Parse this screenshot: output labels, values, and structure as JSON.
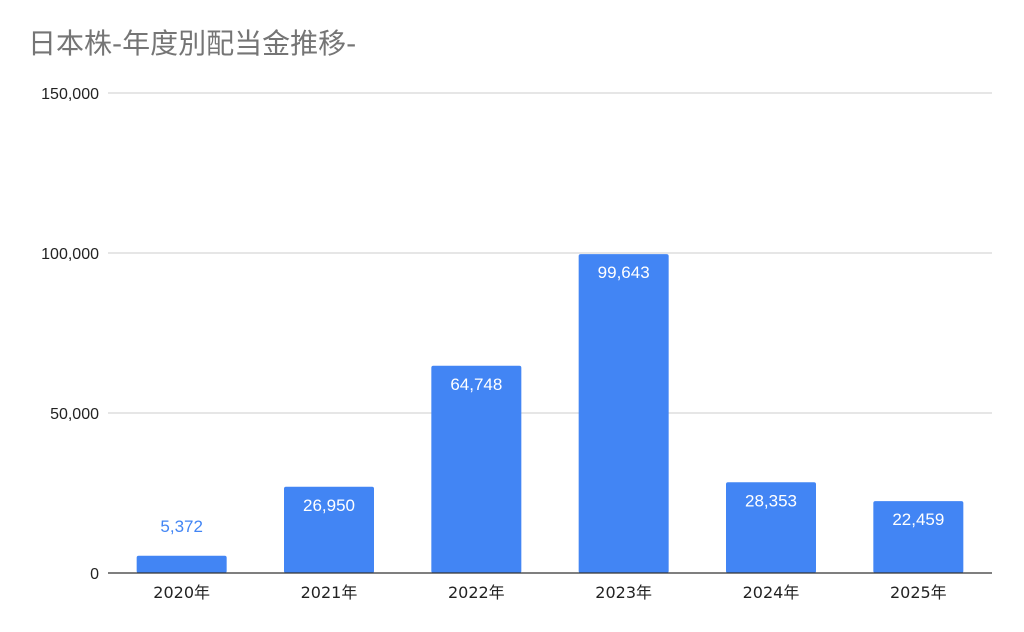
{
  "chart_data": {
    "type": "bar",
    "title": "日本株-年度別配当金推移-",
    "categories": [
      "2020年",
      "2021年",
      "2022年",
      "2023年",
      "2024年",
      "2025年"
    ],
    "values": [
      5372,
      26950,
      64748,
      99643,
      28353,
      22459
    ],
    "data_labels": [
      "5,372",
      "26,950",
      "64,748",
      "99,643",
      "28,353",
      "22,459"
    ],
    "ylim": [
      0,
      150000
    ],
    "yticks": [
      0,
      50000,
      100000,
      150000
    ],
    "ytick_labels": [
      "0",
      "50,000",
      "100,000",
      "150,000"
    ],
    "xlabel": "",
    "ylabel": "",
    "grid": true,
    "legend": "none",
    "colors": {
      "bar": "#4285f4",
      "label_inside": "#ffffff",
      "label_outside": "#4285f4",
      "grid": "#cccccc",
      "axis": "#333333",
      "title": "#757575"
    }
  }
}
